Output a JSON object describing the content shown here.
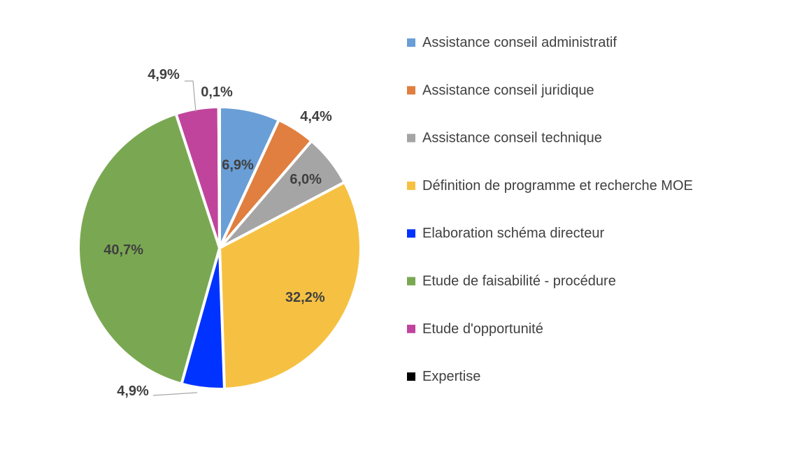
{
  "chart_data": {
    "type": "pie",
    "title": "",
    "series": [
      {
        "categories": [
          "Assistance conseil administratif",
          "Assistance conseil juridique",
          "Assistance conseil technique",
          "Définition de programme et recherche MOE",
          "Elaboration schéma directeur",
          "Etude de faisabilité - procédure",
          "Etude d'opportunité",
          "Expertise"
        ],
        "values": [
          6.9,
          4.4,
          6.0,
          32.2,
          4.9,
          40.7,
          4.9,
          0.1
        ],
        "labels": [
          "6,9%",
          "4,4%",
          "6,0%",
          "32,2%",
          "4,9%",
          "40,7%",
          "4,9%",
          "0,1%"
        ],
        "colors": [
          "#6a9ed6",
          "#e07f3f",
          "#a5a5a5",
          "#f6c142",
          "#0033ff",
          "#7aa852",
          "#c0449c",
          "#000000"
        ]
      }
    ],
    "legend_position": "right",
    "slice_separator_color": "#ffffff"
  }
}
